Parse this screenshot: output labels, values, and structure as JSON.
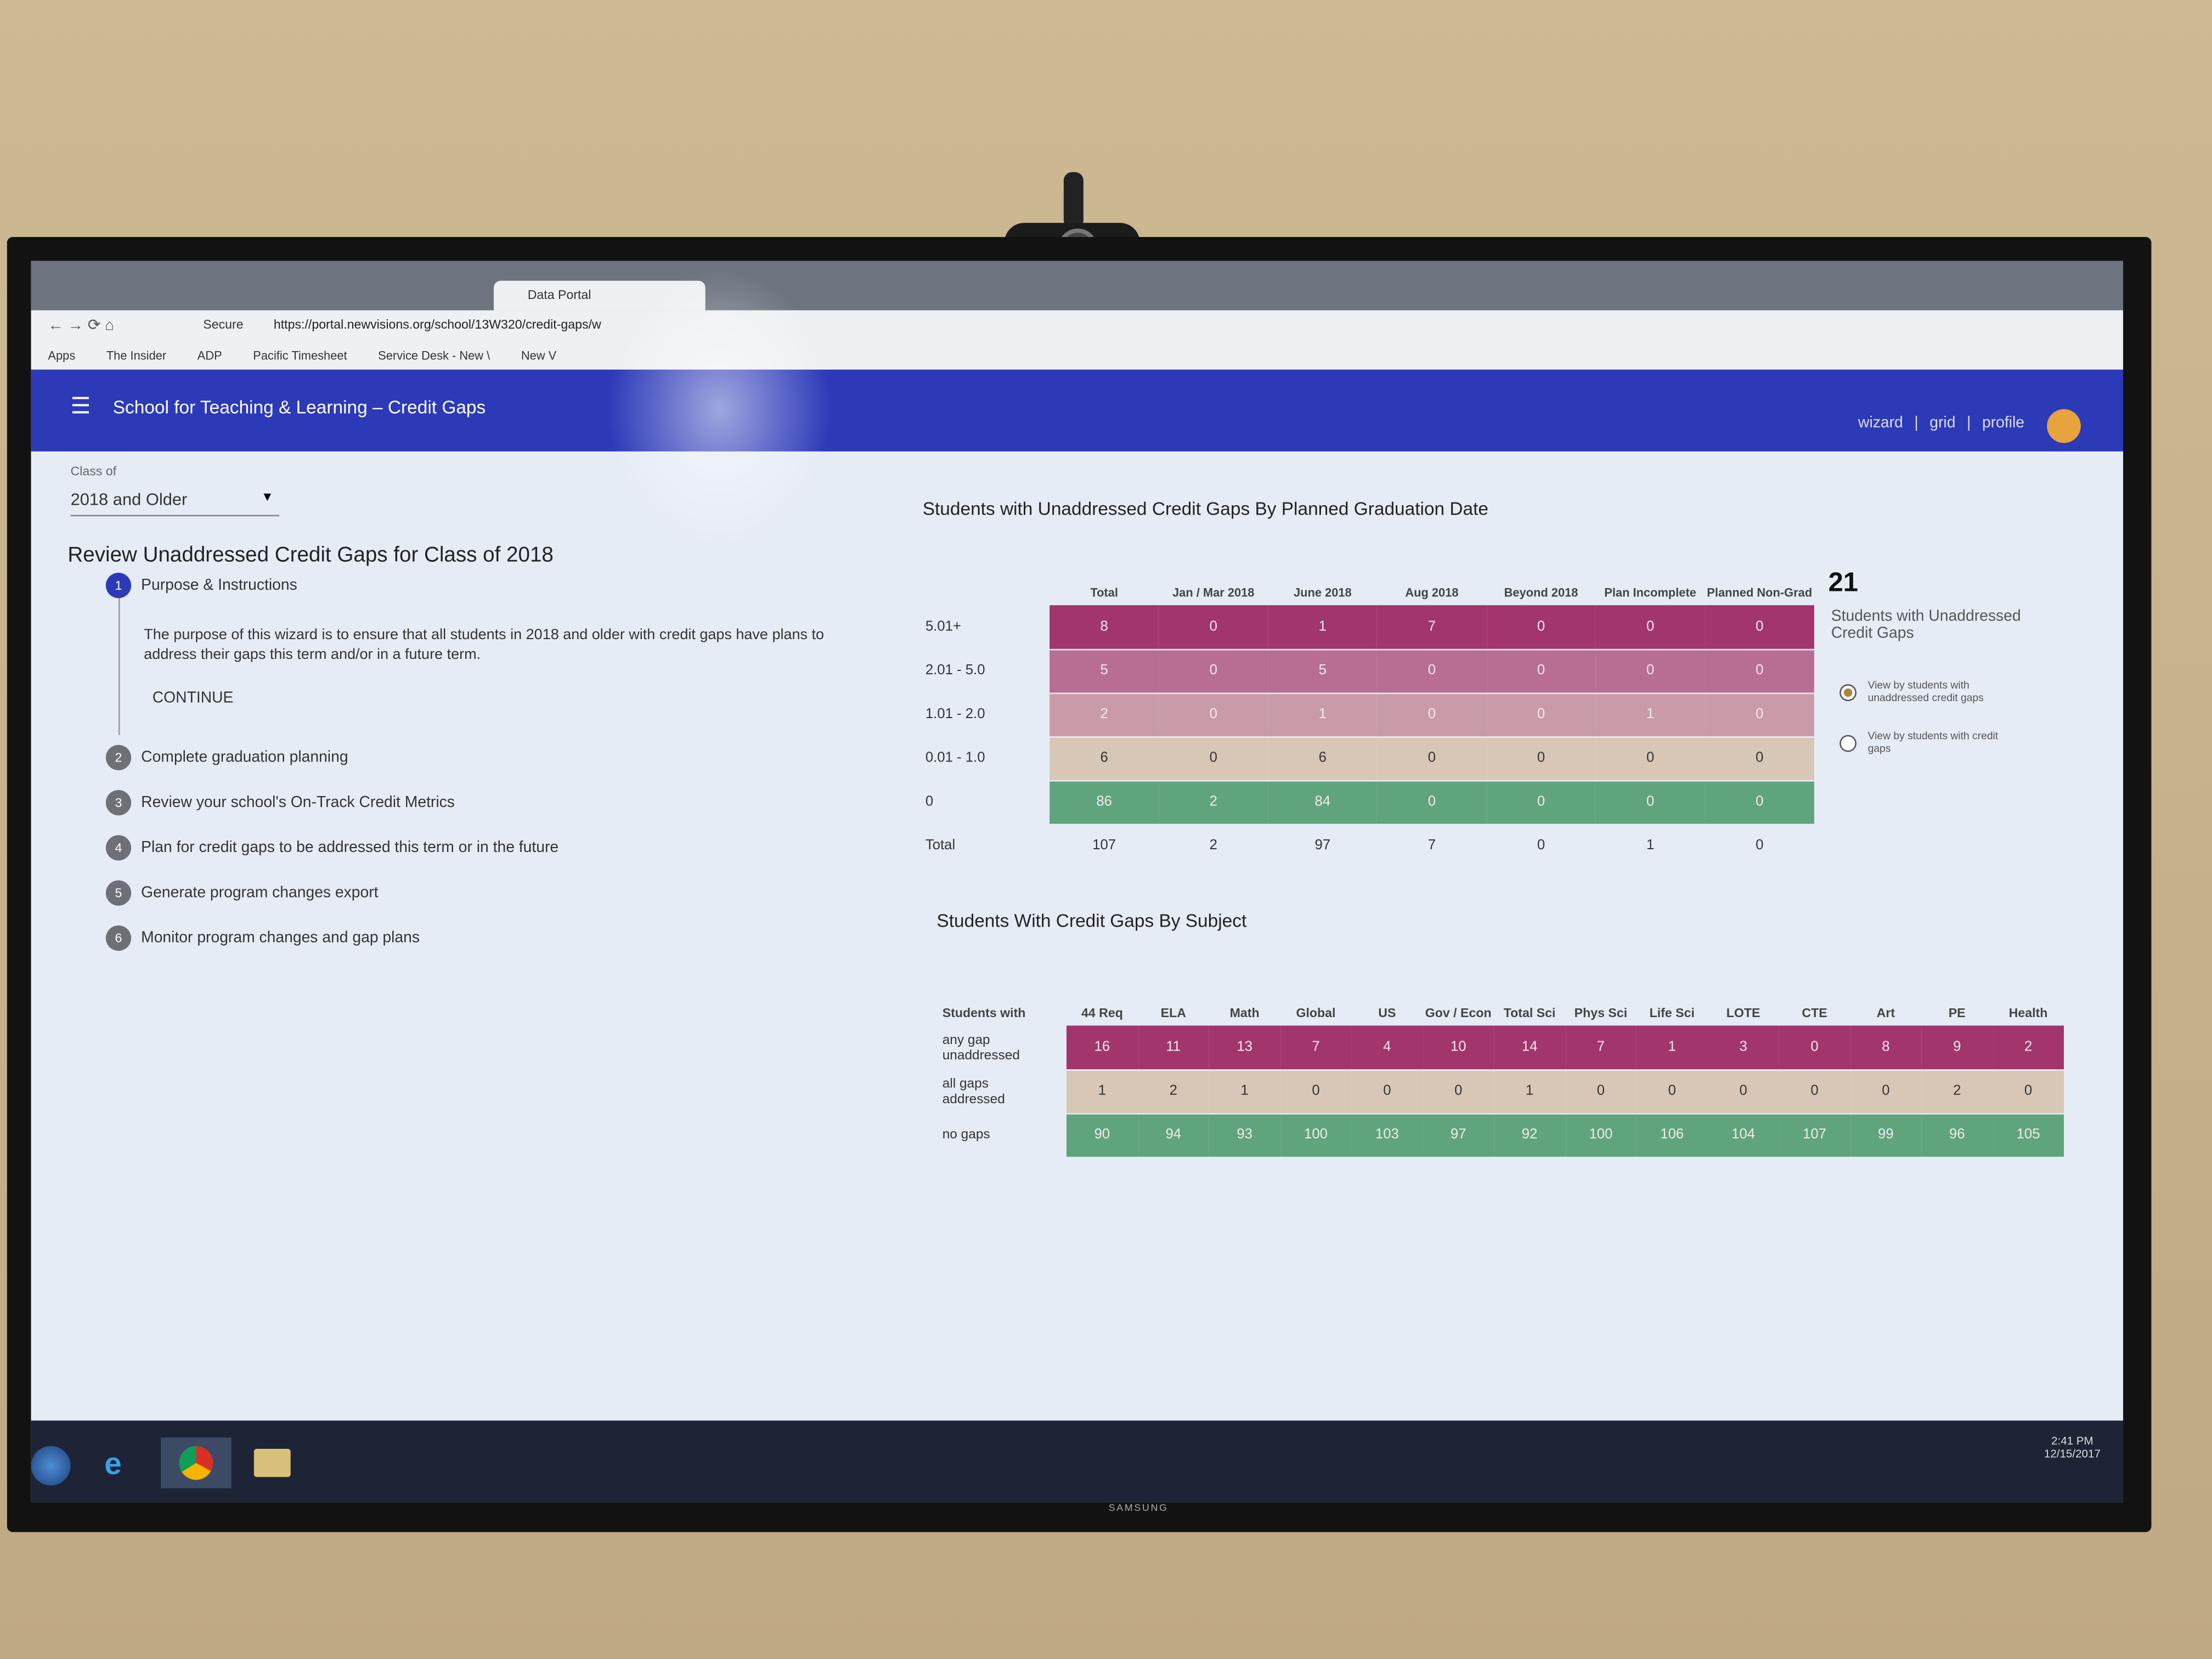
{
  "browser": {
    "tab": "Data Portal",
    "secure": "Secure",
    "url": "https://portal.newvisions.org/school/13W320/credit-gaps/w",
    "bookmarks": [
      "Apps",
      "The Insider",
      "ADP",
      "Pacific Timesheet",
      "Service Desk - New \\",
      "New V"
    ]
  },
  "header": {
    "title": "School for Teaching & Learning – Credit Gaps",
    "nav": [
      "wizard",
      "grid",
      "profile"
    ]
  },
  "filter": {
    "label": "Class of",
    "value": "2018 and Older"
  },
  "wizard": {
    "title": "Review Unaddressed Credit Gaps for Class of 2018",
    "instructions": "The purpose of this wizard is to ensure that all students in 2018 and older with credit gaps have plans to address their gaps this term and/or in a future term.",
    "continue": "CONTINUE",
    "steps": [
      {
        "number": 1,
        "label": "Purpose & Instructions"
      },
      {
        "number": 2,
        "label": "Complete graduation planning"
      },
      {
        "number": 3,
        "label": "Review your school's On-Track Credit Metrics"
      },
      {
        "number": 4,
        "label": "Plan for credit gaps to be addressed this term or in the future"
      },
      {
        "number": 5,
        "label": "Generate program changes export"
      },
      {
        "number": 6,
        "label": "Monitor program changes and gap plans"
      }
    ]
  },
  "graduation_table": {
    "title": "Students with Unaddressed Credit Gaps By Planned Graduation Date",
    "columns": [
      "Total",
      "Jan / Mar 2018",
      "June 2018",
      "Aug 2018",
      "Beyond 2018",
      "Plan Incomplete",
      "Planned Non-Grad"
    ],
    "rows": [
      {
        "label": "5.01+",
        "color": "#a2356c",
        "values": [
          8,
          0,
          1,
          7,
          0,
          0,
          0
        ]
      },
      {
        "label": "2.01 - 5.0",
        "color": "#b86d93",
        "values": [
          5,
          0,
          5,
          0,
          0,
          0,
          0
        ]
      },
      {
        "label": "1.01 - 2.0",
        "color": "#c99ba9",
        "values": [
          2,
          0,
          1,
          0,
          0,
          1,
          0
        ]
      },
      {
        "label": "0.01 - 1.0",
        "color": "#d8c7b7",
        "values": [
          6,
          0,
          6,
          0,
          0,
          0,
          0
        ]
      },
      {
        "label": "0",
        "color": "#5fa47c",
        "values": [
          86,
          2,
          84,
          0,
          0,
          0,
          0
        ]
      }
    ],
    "total": {
      "label": "Total",
      "values": [
        107,
        2,
        97,
        7,
        0,
        1,
        0
      ]
    }
  },
  "summary": {
    "count": "21",
    "label": "Students with Unaddressed Credit Gaps",
    "options": [
      "View by students with unaddressed credit gaps",
      "View by students with credit gaps"
    ]
  },
  "subject_table": {
    "title": "Students With Credit Gaps By Subject",
    "corner": "Students with",
    "columns": [
      "44 Req",
      "ELA",
      "Math",
      "Global",
      "US",
      "Gov / Econ",
      "Total Sci",
      "Phys Sci",
      "Life Sci",
      "LOTE",
      "CTE",
      "Art",
      "PE",
      "Health"
    ],
    "rows": [
      {
        "label": "any gap unaddressed",
        "color": "#a2356c",
        "values": [
          16,
          11,
          13,
          7,
          4,
          10,
          14,
          7,
          1,
          3,
          0,
          8,
          9,
          2
        ]
      },
      {
        "label": "all gaps addressed",
        "color": "#d8c7b7",
        "values": [
          1,
          2,
          1,
          0,
          0,
          0,
          1,
          0,
          0,
          0,
          0,
          0,
          2,
          0
        ]
      },
      {
        "label": "no gaps",
        "color": "#5fa47c",
        "values": [
          90,
          94,
          93,
          100,
          103,
          97,
          92,
          100,
          106,
          104,
          107,
          99,
          96,
          105
        ]
      }
    ]
  },
  "taskbar": {
    "time": "2:41 PM",
    "date": "12/15/2017"
  },
  "brand": "SAMSUNG"
}
